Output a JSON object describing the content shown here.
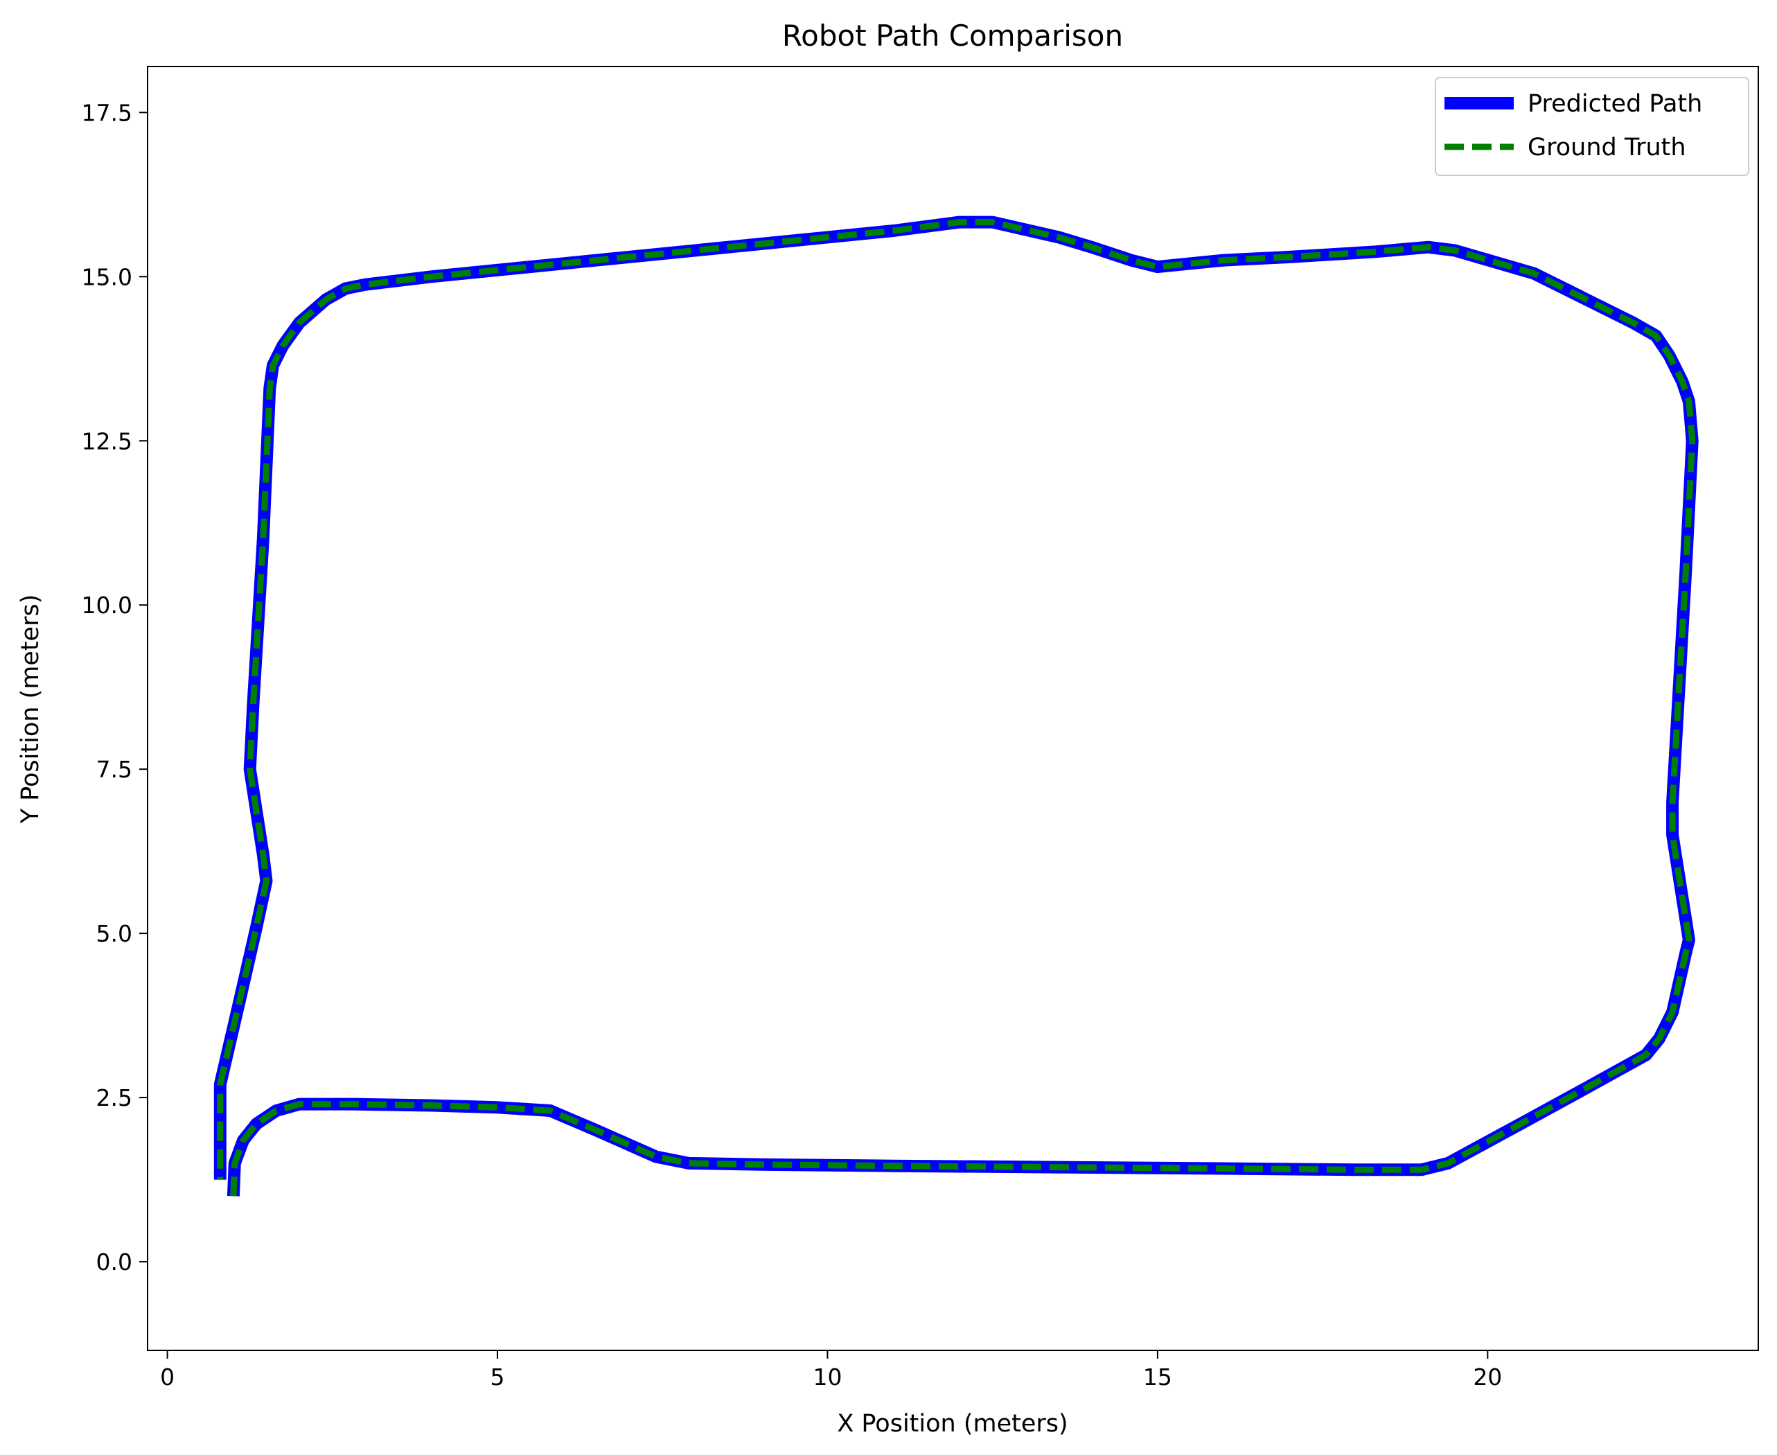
{
  "chart_data": {
    "type": "line",
    "title": "Robot Path Comparison",
    "xlabel": "X Position (meters)",
    "ylabel": "Y Position (meters)",
    "xlim": [
      -0.3,
      24.1
    ],
    "ylim": [
      -1.35,
      18.2
    ],
    "xticks": [
      {
        "value": 0,
        "label": "0"
      },
      {
        "value": 5,
        "label": "5"
      },
      {
        "value": 10,
        "label": "10"
      },
      {
        "value": 15,
        "label": "15"
      },
      {
        "value": 20,
        "label": "20"
      }
    ],
    "yticks": [
      {
        "value": 0,
        "label": "0.0"
      },
      {
        "value": 2.5,
        "label": "2.5"
      },
      {
        "value": 5,
        "label": "5.0"
      },
      {
        "value": 7.5,
        "label": "7.5"
      },
      {
        "value": 10,
        "label": "10.0"
      },
      {
        "value": 12.5,
        "label": "12.5"
      },
      {
        "value": 15,
        "label": "15.0"
      },
      {
        "value": 17.5,
        "label": "17.5"
      }
    ],
    "grid": false,
    "legend_position": "top-right",
    "series": [
      {
        "name": "Predicted Path",
        "color": "#0000ff",
        "style": "solid",
        "points": [
          [
            1.0,
            1.0
          ],
          [
            1.02,
            1.5
          ],
          [
            1.15,
            1.85
          ],
          [
            1.35,
            2.1
          ],
          [
            1.65,
            2.3
          ],
          [
            2.0,
            2.4
          ],
          [
            2.8,
            2.4
          ],
          [
            4.0,
            2.38
          ],
          [
            5.0,
            2.35
          ],
          [
            5.8,
            2.3
          ],
          [
            6.5,
            2.0
          ],
          [
            7.4,
            1.6
          ],
          [
            7.9,
            1.5
          ],
          [
            9.0,
            1.48
          ],
          [
            11.0,
            1.46
          ],
          [
            13.5,
            1.44
          ],
          [
            16.0,
            1.42
          ],
          [
            18.0,
            1.4
          ],
          [
            19.0,
            1.4
          ],
          [
            19.4,
            1.5
          ],
          [
            20.5,
            2.1
          ],
          [
            21.5,
            2.65
          ],
          [
            22.4,
            3.15
          ],
          [
            22.6,
            3.4
          ],
          [
            22.8,
            3.8
          ],
          [
            23.0,
            4.7
          ],
          [
            23.05,
            4.9
          ],
          [
            22.8,
            6.5
          ],
          [
            22.8,
            7.0
          ],
          [
            23.0,
            10.5
          ],
          [
            23.1,
            12.5
          ],
          [
            23.05,
            13.1
          ],
          [
            22.95,
            13.4
          ],
          [
            22.75,
            13.8
          ],
          [
            22.55,
            14.1
          ],
          [
            22.2,
            14.3
          ],
          [
            21.5,
            14.65
          ],
          [
            20.7,
            15.05
          ],
          [
            19.5,
            15.4
          ],
          [
            19.1,
            15.45
          ],
          [
            18.3,
            15.38
          ],
          [
            17.0,
            15.3
          ],
          [
            16.0,
            15.25
          ],
          [
            15.0,
            15.15
          ],
          [
            14.6,
            15.25
          ],
          [
            14.0,
            15.45
          ],
          [
            13.5,
            15.6
          ],
          [
            12.5,
            15.83
          ],
          [
            12.0,
            15.83
          ],
          [
            11.0,
            15.7
          ],
          [
            10.0,
            15.6
          ],
          [
            8.0,
            15.4
          ],
          [
            6.0,
            15.2
          ],
          [
            4.0,
            15.0
          ],
          [
            3.0,
            14.88
          ],
          [
            2.7,
            14.82
          ],
          [
            2.4,
            14.65
          ],
          [
            2.0,
            14.3
          ],
          [
            1.75,
            13.95
          ],
          [
            1.6,
            13.65
          ],
          [
            1.55,
            13.3
          ],
          [
            1.45,
            11.0
          ],
          [
            1.3,
            8.5
          ],
          [
            1.25,
            7.5
          ],
          [
            1.45,
            6.2
          ],
          [
            1.5,
            5.8
          ],
          [
            1.35,
            5.1
          ],
          [
            1.1,
            4.0
          ],
          [
            0.8,
            2.7
          ],
          [
            0.8,
            1.25
          ]
        ]
      },
      {
        "name": "Ground Truth",
        "color": "#008000",
        "style": "dashed",
        "points": [
          [
            1.0,
            1.0
          ],
          [
            1.02,
            1.5
          ],
          [
            1.15,
            1.85
          ],
          [
            1.35,
            2.1
          ],
          [
            1.65,
            2.3
          ],
          [
            2.0,
            2.4
          ],
          [
            2.8,
            2.4
          ],
          [
            4.0,
            2.38
          ],
          [
            5.0,
            2.35
          ],
          [
            5.8,
            2.3
          ],
          [
            6.5,
            2.0
          ],
          [
            7.4,
            1.6
          ],
          [
            7.9,
            1.5
          ],
          [
            9.0,
            1.48
          ],
          [
            11.0,
            1.46
          ],
          [
            13.5,
            1.44
          ],
          [
            16.0,
            1.42
          ],
          [
            18.0,
            1.4
          ],
          [
            19.0,
            1.4
          ],
          [
            19.4,
            1.5
          ],
          [
            20.5,
            2.1
          ],
          [
            21.5,
            2.65
          ],
          [
            22.4,
            3.15
          ],
          [
            22.6,
            3.4
          ],
          [
            22.8,
            3.8
          ],
          [
            23.0,
            4.7
          ],
          [
            23.05,
            4.9
          ],
          [
            22.8,
            6.5
          ],
          [
            22.8,
            7.0
          ],
          [
            23.0,
            10.5
          ],
          [
            23.1,
            12.5
          ],
          [
            23.05,
            13.1
          ],
          [
            22.95,
            13.4
          ],
          [
            22.75,
            13.8
          ],
          [
            22.55,
            14.1
          ],
          [
            22.2,
            14.3
          ],
          [
            21.5,
            14.65
          ],
          [
            20.7,
            15.05
          ],
          [
            19.5,
            15.4
          ],
          [
            19.1,
            15.45
          ],
          [
            18.3,
            15.38
          ],
          [
            17.0,
            15.3
          ],
          [
            16.0,
            15.25
          ],
          [
            15.0,
            15.15
          ],
          [
            14.6,
            15.25
          ],
          [
            14.0,
            15.45
          ],
          [
            13.5,
            15.6
          ],
          [
            12.5,
            15.83
          ],
          [
            12.0,
            15.83
          ],
          [
            11.0,
            15.7
          ],
          [
            10.0,
            15.6
          ],
          [
            8.0,
            15.4
          ],
          [
            6.0,
            15.2
          ],
          [
            4.0,
            15.0
          ],
          [
            3.0,
            14.88
          ],
          [
            2.7,
            14.82
          ],
          [
            2.4,
            14.65
          ],
          [
            2.0,
            14.3
          ],
          [
            1.75,
            13.95
          ],
          [
            1.6,
            13.65
          ],
          [
            1.55,
            13.3
          ],
          [
            1.45,
            11.0
          ],
          [
            1.3,
            8.5
          ],
          [
            1.25,
            7.5
          ],
          [
            1.45,
            6.2
          ],
          [
            1.5,
            5.8
          ],
          [
            1.35,
            5.1
          ],
          [
            1.1,
            4.0
          ],
          [
            0.8,
            2.7
          ],
          [
            0.8,
            1.25
          ]
        ]
      }
    ]
  }
}
